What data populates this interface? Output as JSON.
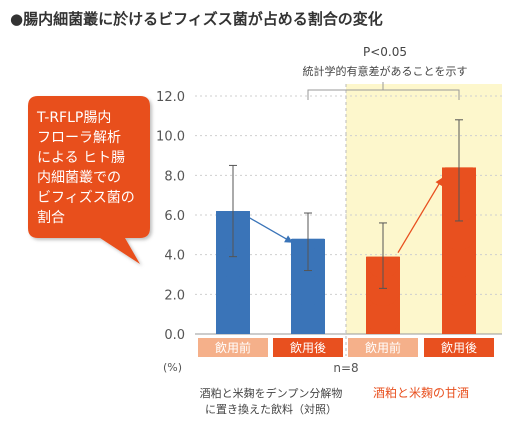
{
  "title": "●腸内細菌叢に於けるビフィズス菌が占める割合の変化",
  "callout_text": "T-RFLP腸内フローラ解析によるヒト腸内細菌叢でのビフィズス菌の割合",
  "significance": {
    "p_value": "P<0.05",
    "label": "統計学的有意差があることを示す"
  },
  "colors": {
    "control": "#3a74b8",
    "treatment": "#e8501f",
    "highlight_bg": "#fdf7cc",
    "before_box": "#f5b08a",
    "after_box": "#e8501f",
    "callout": "#e8501f"
  },
  "chart_data": {
    "type": "bar",
    "ylabel": "(%)",
    "ylim": [
      0,
      12
    ],
    "yticks": [
      "0.0",
      "2.0",
      "4.0",
      "6.0",
      "8.0",
      "10.0",
      "12.0"
    ],
    "categories": [
      "飲用前",
      "飲用後",
      "飲用前",
      "飲用後"
    ],
    "values": [
      6.2,
      4.8,
      3.9,
      8.4
    ],
    "error_high": [
      8.5,
      6.1,
      5.6,
      10.8
    ],
    "error_low": [
      3.9,
      3.2,
      2.3,
      5.7
    ],
    "groups": [
      {
        "label_lines": [
          "酒粕と米麹をデンプン分解物",
          "に置き換えた飲料（対照）"
        ],
        "color": "control"
      },
      {
        "label_lines": [
          "酒粕と米麹の甘酒"
        ],
        "color": "treatment"
      }
    ],
    "n_label": "n=8"
  }
}
